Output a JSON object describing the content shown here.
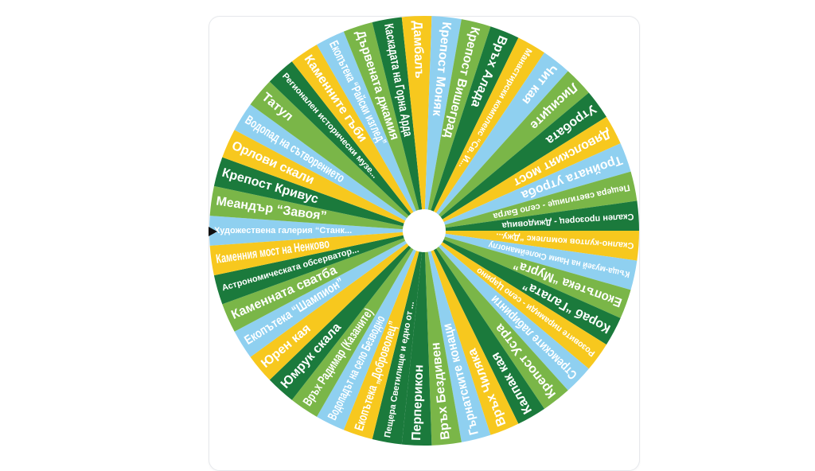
{
  "colors": {
    "light_blue": "#8fd0f0",
    "light_green": "#7ab648",
    "dark_green": "#1b7a3c",
    "yellow": "#f7c81e",
    "hub": "#ffffff",
    "pointer": "#111111"
  },
  "wheel": {
    "segments": [
      {
        "label": "Художествена галерия “Станк...",
        "color": "light_blue",
        "small": true
      },
      {
        "label": "Меандър “Завоя”",
        "color": "light_green"
      },
      {
        "label": "Крепост Кривус",
        "color": "dark_green"
      },
      {
        "label": "Орлови скали",
        "color": "yellow"
      },
      {
        "label": "Водопад на сътворението",
        "color": "light_blue"
      },
      {
        "label": "Татул",
        "color": "light_green"
      },
      {
        "label": "Регионален исторически музе...",
        "color": "dark_green",
        "small": true
      },
      {
        "label": "Каменните гъби",
        "color": "yellow"
      },
      {
        "label": "Екопътека “Райски изглед”",
        "color": "light_blue"
      },
      {
        "label": "Дървената джамия",
        "color": "light_green"
      },
      {
        "label": "Каскадата на Горна Арда",
        "color": "dark_green"
      },
      {
        "label": "Дамбалъ",
        "color": "yellow"
      },
      {
        "label": "Крепост Моняк",
        "color": "light_blue"
      },
      {
        "label": "Крепост Вишеград",
        "color": "light_green"
      },
      {
        "label": "Връх Алада",
        "color": "dark_green"
      },
      {
        "label": "Манастирски комплекс “Св. И...",
        "color": "yellow",
        "small": true
      },
      {
        "label": "Чит кая",
        "color": "light_blue"
      },
      {
        "label": "Лисиците",
        "color": "light_green"
      },
      {
        "label": "Утробата",
        "color": "dark_green"
      },
      {
        "label": "Дяволският мост",
        "color": "yellow"
      },
      {
        "label": "Тройната утроба",
        "color": "light_blue"
      },
      {
        "label": "Пещера светилище - село Багра",
        "color": "light_green",
        "small": true
      },
      {
        "label": "Скален прозорец - Джидовица",
        "color": "dark_green",
        "small": true
      },
      {
        "label": "Скално-култов комплекс “Джу...",
        "color": "yellow",
        "small": true
      },
      {
        "label": "Къща-музей на Наим Сюлейманоглу",
        "color": "light_blue",
        "small": true
      },
      {
        "label": "Екопътека “Мурга”",
        "color": "light_green"
      },
      {
        "label": "Кораб “Галата”",
        "color": "dark_green"
      },
      {
        "label": "Розовите пирамиди - село Царино",
        "color": "yellow",
        "small": true
      },
      {
        "label": "Стремските лабиринти",
        "color": "light_blue"
      },
      {
        "label": "Крепост Устра",
        "color": "light_green"
      },
      {
        "label": "Калпак кая",
        "color": "dark_green"
      },
      {
        "label": "Връх Чиляка",
        "color": "yellow"
      },
      {
        "label": "Гърнатските конаци",
        "color": "light_blue"
      },
      {
        "label": "Връх Бездивен",
        "color": "light_green"
      },
      {
        "label": "Перперикон",
        "color": "dark_green"
      },
      {
        "label": "Пещера Светилище и едно от ...",
        "color": "dark_green",
        "small": true
      },
      {
        "label": "Екопътека „Доброволец”",
        "color": "yellow"
      },
      {
        "label": "Водопадът на село Безводно",
        "color": "light_blue"
      },
      {
        "label": "Връх Радимар (Казаните)",
        "color": "light_green"
      },
      {
        "label": "Юмрук скала",
        "color": "dark_green"
      },
      {
        "label": "Юрен кая",
        "color": "yellow"
      },
      {
        "label": "Екопътека “Шампион”",
        "color": "light_blue"
      },
      {
        "label": "Каменната сватба",
        "color": "light_green"
      },
      {
        "label": "Астрономическата обсерватор...",
        "color": "dark_green",
        "small": true
      },
      {
        "label": "Каменния мост на Ненково",
        "color": "yellow"
      }
    ]
  }
}
